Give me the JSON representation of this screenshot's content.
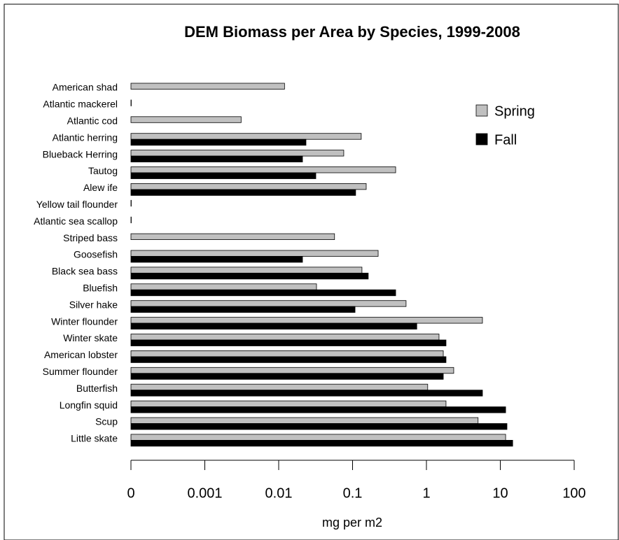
{
  "chart_data": {
    "type": "barh",
    "title": "DEM Biomass per Area by Species, 1999-2008",
    "x_label": "mg per m2",
    "categories": [
      "American shad",
      "Atlantic mackerel",
      "Atlantic cod",
      "Atlantic herring",
      "Blueback Herring",
      "Tautog",
      "Alew ife",
      "Yellow tail flounder",
      "Atlantic sea scallop",
      "Striped bass",
      "Goosefish",
      "Black sea bass",
      "Bluefish",
      "Silver hake",
      "Winter flounder",
      "Winter skate",
      "American lobster",
      "Summer flounder",
      "Butterfish",
      "Longfin squid",
      "Scup",
      "Little skate"
    ],
    "series": [
      {
        "name": "Spring",
        "color": "#c0c0c0",
        "values": [
          0.012,
          0.0001,
          0.0031,
          0.131,
          0.076,
          0.383,
          0.153,
          0.0001,
          0.0001,
          0.057,
          0.222,
          0.134,
          0.0325,
          0.53,
          5.73,
          1.48,
          1.69,
          2.34,
          1.04,
          1.84,
          5.0,
          11.8
        ]
      },
      {
        "name": "Fall",
        "color": "#000000",
        "values": [
          null,
          null,
          null,
          0.0234,
          0.021,
          0.0318,
          0.11,
          null,
          null,
          null,
          0.021,
          0.163,
          0.383,
          0.108,
          0.74,
          1.84,
          1.84,
          1.69,
          5.73,
          11.8,
          12.3,
          14.7
        ]
      }
    ],
    "xscale": "log",
    "xlim": [
      0.0001,
      100
    ],
    "xticks": [
      {
        "value": 0.0001,
        "label": "0"
      },
      0.001,
      0.01,
      0.1,
      1,
      10,
      100
    ],
    "legend": "upper right"
  }
}
